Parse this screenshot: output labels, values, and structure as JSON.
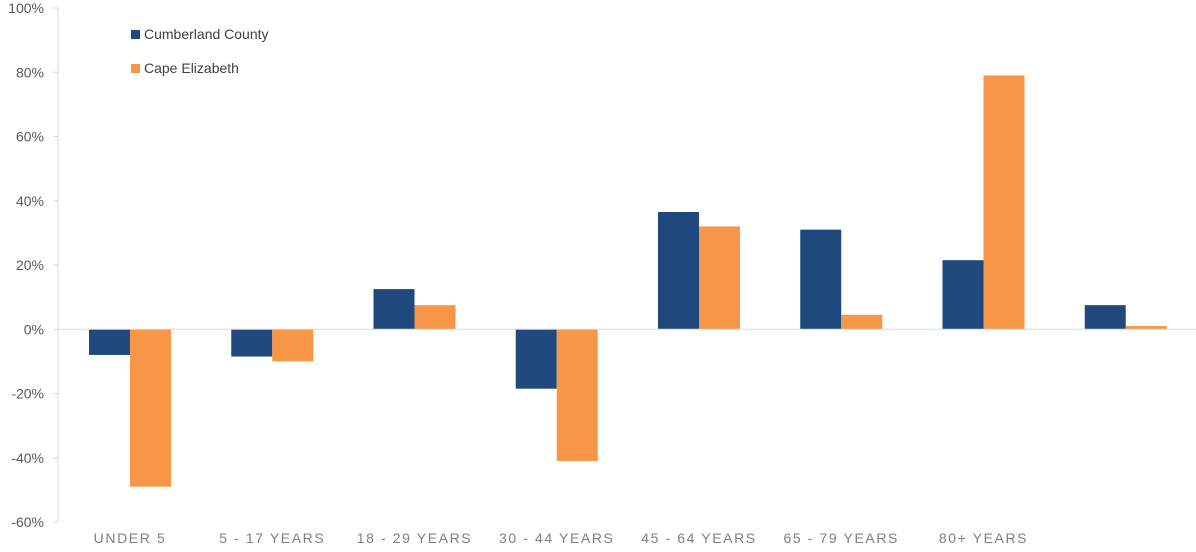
{
  "chart_data": {
    "type": "bar",
    "title": "",
    "xlabel": "",
    "ylabel": "",
    "ylim": [
      -60,
      100
    ],
    "yticks": [
      -60,
      -40,
      -20,
      0,
      20,
      40,
      60,
      80,
      100
    ],
    "ytick_labels": [
      "-60%",
      "-40%",
      "-20%",
      "0%",
      "20%",
      "40%",
      "60%",
      "80%",
      "100%"
    ],
    "categories": [
      "UNDER 5",
      "5 - 17 YEARS",
      "18 - 29 YEARS",
      "30 - 44 YEARS",
      "45 - 64 YEARS",
      "65 - 79 YEARS",
      "80+ YEARS",
      ""
    ],
    "series": [
      {
        "name": "Cumberland County",
        "color": "#1f497d",
        "values": [
          -8,
          -8.5,
          12.5,
          -18.5,
          36.5,
          31,
          21.5,
          7.5
        ]
      },
      {
        "name": "Cape Elizabeth",
        "color": "#f79646",
        "values": [
          -49,
          -10,
          7.5,
          -41,
          32,
          4.5,
          79,
          1
        ]
      }
    ],
    "grid": false,
    "legend_position": "top-left"
  }
}
